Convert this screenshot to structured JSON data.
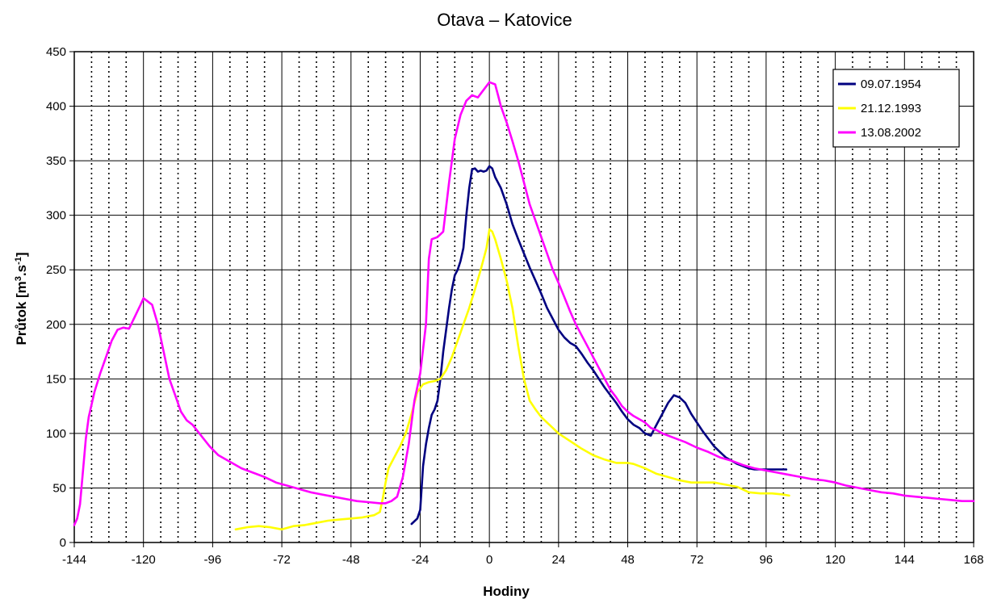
{
  "chart_data": {
    "type": "line",
    "title": "Otava – Katovice",
    "xlabel": "Hodiny",
    "ylabel": "Průtok [m3.s-1]",
    "ylabel_parts": {
      "base": "Průtok [m",
      "sup1": "3",
      "mid": ".s",
      "sup2": "-1",
      "end": "]"
    },
    "xlim": [
      -144,
      168
    ],
    "ylim": [
      0,
      450
    ],
    "x_ticks": [
      -144,
      -120,
      -96,
      -72,
      -48,
      -24,
      0,
      24,
      48,
      72,
      96,
      120,
      144,
      168
    ],
    "y_ticks": [
      0,
      50,
      100,
      150,
      200,
      250,
      300,
      350,
      400,
      450
    ],
    "grid": {
      "major_solid_every": 24,
      "minor_dotted_every": 6,
      "horizontal": true
    },
    "legend_position": "top-right",
    "series": [
      {
        "name": "09.07.1954",
        "color": "#000080",
        "points": [
          [
            -27,
            17
          ],
          [
            -25,
            22
          ],
          [
            -24,
            30
          ],
          [
            -23,
            70
          ],
          [
            -22,
            90
          ],
          [
            -21,
            105
          ],
          [
            -20,
            117
          ],
          [
            -19,
            122
          ],
          [
            -18,
            130
          ],
          [
            -17,
            150
          ],
          [
            -16,
            175
          ],
          [
            -15,
            195
          ],
          [
            -14,
            215
          ],
          [
            -13,
            232
          ],
          [
            -12,
            245
          ],
          [
            -11,
            250
          ],
          [
            -10,
            258
          ],
          [
            -9,
            270
          ],
          [
            -8,
            300
          ],
          [
            -7,
            325
          ],
          [
            -6,
            342
          ],
          [
            -5,
            343
          ],
          [
            -4,
            340
          ],
          [
            -3,
            341
          ],
          [
            -2,
            340
          ],
          [
            -1,
            341
          ],
          [
            0,
            345
          ],
          [
            1,
            343
          ],
          [
            2,
            335
          ],
          [
            4,
            325
          ],
          [
            6,
            310
          ],
          [
            8,
            292
          ],
          [
            10,
            278
          ],
          [
            12,
            265
          ],
          [
            14,
            252
          ],
          [
            16,
            240
          ],
          [
            18,
            228
          ],
          [
            20,
            215
          ],
          [
            22,
            205
          ],
          [
            24,
            195
          ],
          [
            26,
            188
          ],
          [
            28,
            183
          ],
          [
            30,
            180
          ],
          [
            32,
            173
          ],
          [
            34,
            165
          ],
          [
            36,
            158
          ],
          [
            38,
            150
          ],
          [
            40,
            142
          ],
          [
            42,
            135
          ],
          [
            44,
            128
          ],
          [
            46,
            120
          ],
          [
            48,
            113
          ],
          [
            50,
            108
          ],
          [
            52,
            105
          ],
          [
            54,
            100
          ],
          [
            56,
            98
          ],
          [
            58,
            108
          ],
          [
            60,
            118
          ],
          [
            62,
            128
          ],
          [
            64,
            135
          ],
          [
            66,
            133
          ],
          [
            68,
            128
          ],
          [
            70,
            118
          ],
          [
            72,
            110
          ],
          [
            74,
            102
          ],
          [
            76,
            95
          ],
          [
            78,
            88
          ],
          [
            80,
            83
          ],
          [
            82,
            78
          ],
          [
            84,
            75
          ],
          [
            86,
            72
          ],
          [
            88,
            70
          ],
          [
            90,
            68
          ],
          [
            92,
            67
          ],
          [
            95,
            67
          ],
          [
            98,
            67
          ],
          [
            100,
            67
          ],
          [
            103,
            67
          ]
        ]
      },
      {
        "name": "21.12.1993",
        "color": "#ffff00",
        "points": [
          [
            -88,
            12
          ],
          [
            -84,
            14
          ],
          [
            -80,
            15
          ],
          [
            -76,
            14
          ],
          [
            -72,
            12
          ],
          [
            -68,
            15
          ],
          [
            -64,
            16
          ],
          [
            -60,
            18
          ],
          [
            -56,
            20
          ],
          [
            -52,
            21
          ],
          [
            -48,
            22
          ],
          [
            -44,
            23
          ],
          [
            -40,
            25
          ],
          [
            -38,
            28
          ],
          [
            -37,
            40
          ],
          [
            -36,
            55
          ],
          [
            -35,
            68
          ],
          [
            -33,
            78
          ],
          [
            -31,
            88
          ],
          [
            -29,
            100
          ],
          [
            -27,
            118
          ],
          [
            -25,
            138
          ],
          [
            -23,
            145
          ],
          [
            -21,
            147
          ],
          [
            -19,
            148
          ],
          [
            -17,
            150
          ],
          [
            -15,
            158
          ],
          [
            -13,
            170
          ],
          [
            -11,
            185
          ],
          [
            -9,
            200
          ],
          [
            -7,
            215
          ],
          [
            -5,
            232
          ],
          [
            -3,
            250
          ],
          [
            -1,
            270
          ],
          [
            0,
            287
          ],
          [
            1,
            285
          ],
          [
            2,
            278
          ],
          [
            4,
            260
          ],
          [
            6,
            240
          ],
          [
            8,
            215
          ],
          [
            10,
            180
          ],
          [
            12,
            150
          ],
          [
            14,
            130
          ],
          [
            16,
            122
          ],
          [
            18,
            115
          ],
          [
            20,
            110
          ],
          [
            22,
            105
          ],
          [
            24,
            100
          ],
          [
            28,
            93
          ],
          [
            32,
            86
          ],
          [
            36,
            80
          ],
          [
            40,
            76
          ],
          [
            44,
            73
          ],
          [
            48,
            73
          ],
          [
            50,
            72
          ],
          [
            54,
            68
          ],
          [
            58,
            63
          ],
          [
            62,
            60
          ],
          [
            66,
            57
          ],
          [
            70,
            55
          ],
          [
            74,
            55
          ],
          [
            78,
            55
          ],
          [
            82,
            53
          ],
          [
            86,
            51
          ],
          [
            90,
            46
          ],
          [
            94,
            45
          ],
          [
            98,
            45
          ],
          [
            102,
            44
          ],
          [
            104,
            43
          ]
        ]
      },
      {
        "name": "13.08.2002",
        "color": "#ff00ff",
        "points": [
          [
            -144,
            16
          ],
          [
            -143,
            22
          ],
          [
            -142,
            35
          ],
          [
            -141,
            65
          ],
          [
            -140,
            95
          ],
          [
            -139,
            115
          ],
          [
            -137,
            138
          ],
          [
            -135,
            155
          ],
          [
            -133,
            170
          ],
          [
            -131,
            185
          ],
          [
            -129,
            195
          ],
          [
            -127,
            197
          ],
          [
            -125,
            196
          ],
          [
            -123,
            207
          ],
          [
            -121,
            218
          ],
          [
            -120,
            224
          ],
          [
            -119,
            222
          ],
          [
            -118,
            220
          ],
          [
            -117,
            218
          ],
          [
            -115,
            200
          ],
          [
            -113,
            175
          ],
          [
            -111,
            150
          ],
          [
            -109,
            135
          ],
          [
            -107,
            120
          ],
          [
            -105,
            112
          ],
          [
            -103,
            108
          ],
          [
            -100,
            98
          ],
          [
            -97,
            88
          ],
          [
            -94,
            80
          ],
          [
            -90,
            74
          ],
          [
            -86,
            68
          ],
          [
            -82,
            64
          ],
          [
            -78,
            60
          ],
          [
            -74,
            55
          ],
          [
            -70,
            52
          ],
          [
            -66,
            49
          ],
          [
            -62,
            46
          ],
          [
            -58,
            44
          ],
          [
            -54,
            42
          ],
          [
            -50,
            40
          ],
          [
            -46,
            38
          ],
          [
            -42,
            37
          ],
          [
            -38,
            36
          ],
          [
            -36,
            36
          ],
          [
            -34,
            38
          ],
          [
            -32,
            42
          ],
          [
            -30,
            60
          ],
          [
            -28,
            90
          ],
          [
            -26,
            130
          ],
          [
            -24,
            155
          ],
          [
            -22,
            200
          ],
          [
            -21,
            260
          ],
          [
            -20,
            278
          ],
          [
            -18,
            280
          ],
          [
            -16,
            285
          ],
          [
            -14,
            330
          ],
          [
            -12,
            370
          ],
          [
            -10,
            392
          ],
          [
            -8,
            405
          ],
          [
            -6,
            410
          ],
          [
            -4,
            408
          ],
          [
            -2,
            415
          ],
          [
            0,
            422
          ],
          [
            2,
            420
          ],
          [
            3,
            410
          ],
          [
            4,
            400
          ],
          [
            6,
            385
          ],
          [
            8,
            368
          ],
          [
            10,
            350
          ],
          [
            12,
            330
          ],
          [
            14,
            310
          ],
          [
            16,
            295
          ],
          [
            18,
            280
          ],
          [
            20,
            265
          ],
          [
            22,
            250
          ],
          [
            24,
            238
          ],
          [
            26,
            225
          ],
          [
            28,
            212
          ],
          [
            30,
            200
          ],
          [
            32,
            190
          ],
          [
            34,
            180
          ],
          [
            36,
            170
          ],
          [
            38,
            160
          ],
          [
            40,
            150
          ],
          [
            42,
            140
          ],
          [
            44,
            133
          ],
          [
            46,
            125
          ],
          [
            48,
            120
          ],
          [
            50,
            116
          ],
          [
            52,
            113
          ],
          [
            54,
            110
          ],
          [
            56,
            105
          ],
          [
            58,
            103
          ],
          [
            60,
            100
          ],
          [
            64,
            96
          ],
          [
            68,
            92
          ],
          [
            72,
            87
          ],
          [
            76,
            83
          ],
          [
            80,
            78
          ],
          [
            84,
            75
          ],
          [
            88,
            71
          ],
          [
            92,
            68
          ],
          [
            96,
            66
          ],
          [
            100,
            64
          ],
          [
            104,
            62
          ],
          [
            108,
            60
          ],
          [
            112,
            58
          ],
          [
            116,
            57
          ],
          [
            120,
            55
          ],
          [
            124,
            52
          ],
          [
            128,
            50
          ],
          [
            132,
            48
          ],
          [
            136,
            46
          ],
          [
            140,
            45
          ],
          [
            144,
            43
          ],
          [
            148,
            42
          ],
          [
            152,
            41
          ],
          [
            156,
            40
          ],
          [
            160,
            39
          ],
          [
            164,
            38
          ],
          [
            168,
            38
          ]
        ]
      }
    ]
  }
}
